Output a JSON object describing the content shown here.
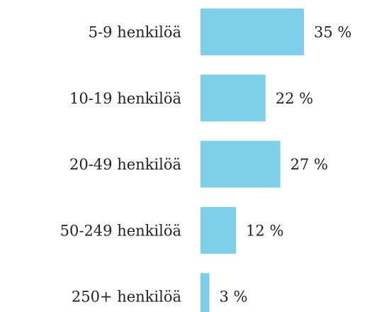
{
  "chart_data": {
    "type": "bar",
    "orientation": "horizontal",
    "categories": [
      "5-9 henkilöä",
      "10-19 henkilöä",
      "20-49 henkilöä",
      "50-249 henkilöä",
      "250+ henkilöä"
    ],
    "values": [
      35,
      22,
      27,
      12,
      3
    ],
    "value_labels": [
      "35 %",
      "22 %",
      "27 %",
      "12 %",
      "3 %"
    ],
    "color": "#7dcfea"
  }
}
